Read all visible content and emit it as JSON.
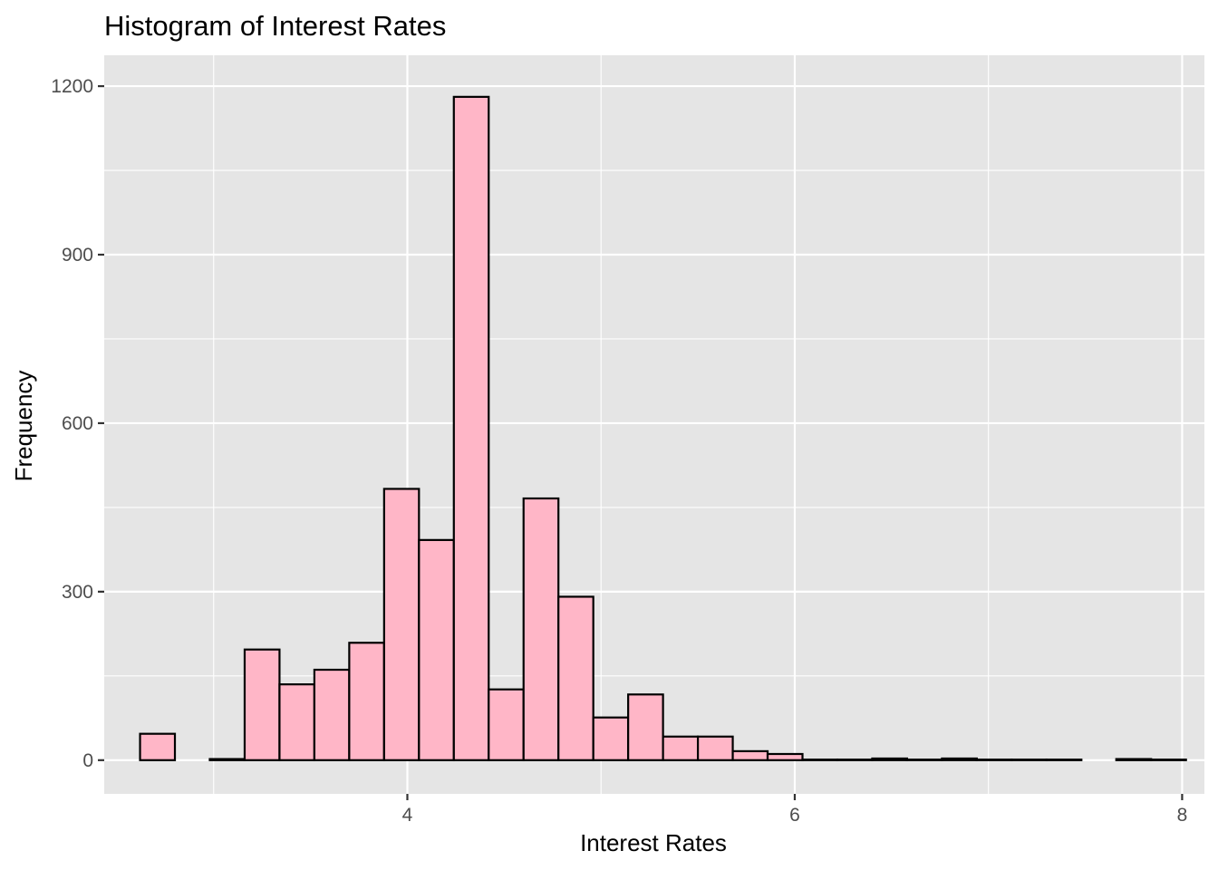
{
  "chart_data": {
    "type": "bar",
    "title": "Histogram of Interest Rates",
    "xlabel": "Interest Rates",
    "ylabel": "Frequency",
    "xlim": [
      2.435,
      8.115
    ],
    "ylim": [
      -60,
      1255
    ],
    "x_ticks": [
      4,
      6,
      8
    ],
    "x_minor_ticks": [
      3,
      5,
      7
    ],
    "y_ticks": [
      0,
      300,
      600,
      900,
      1200
    ],
    "y_minor_ticks": [
      150,
      450,
      750,
      1050
    ],
    "bin_width": 0.18,
    "bin_starts": [
      2.62,
      2.8,
      2.98,
      3.16,
      3.34,
      3.52,
      3.7,
      3.88,
      4.06,
      4.24,
      4.42,
      4.6,
      4.78,
      4.96,
      5.14,
      5.32,
      5.5,
      5.68,
      5.86,
      6.04,
      6.22,
      6.4,
      6.58,
      6.76,
      6.94,
      7.12,
      7.3,
      7.48,
      7.66,
      7.84
    ],
    "values": [
      47,
      0,
      2,
      197,
      135,
      161,
      209,
      483,
      392,
      1181,
      126,
      466,
      291,
      76,
      117,
      42,
      42,
      16,
      11,
      1,
      1,
      3,
      1,
      3,
      1,
      1,
      1,
      0,
      2,
      1
    ],
    "grid": true,
    "legend": "none",
    "colors": {
      "panel_background": "#e5e5e5",
      "grid": "#ffffff",
      "bar_fill": "#ffb6c7",
      "bar_stroke": "#000000",
      "tick_text": "#4d4d4d",
      "tick_mark": "#333333"
    }
  }
}
